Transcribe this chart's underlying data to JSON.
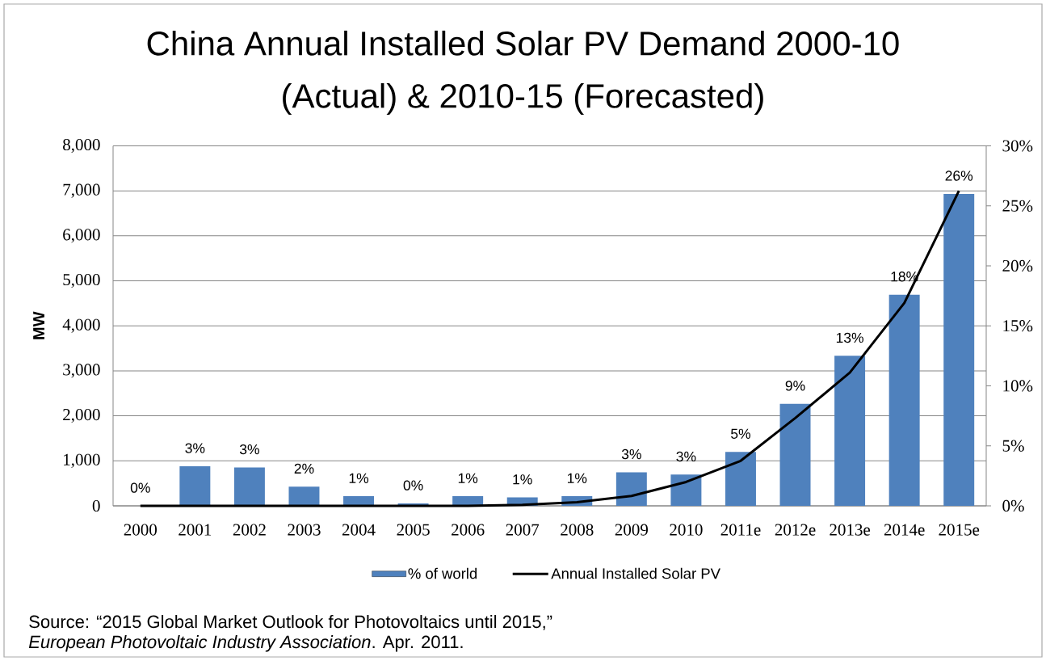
{
  "chart_data": {
    "type": "bar",
    "title": "China Annual Installed Solar PV Demand 2000-10 (Actual) & 2010-15 (Forecasted)",
    "ylabel": "MW",
    "categories": [
      "2000",
      "2001",
      "2002",
      "2003",
      "2004",
      "2005",
      "2006",
      "2007",
      "2008",
      "2009",
      "2010",
      "2011e",
      "2012e",
      "2013e",
      "2014e",
      "2015e"
    ],
    "series": [
      {
        "name": "% of world",
        "axis": "y2",
        "color": "#4f81bd",
        "values": [
          0,
          3.3,
          3.2,
          1.6,
          0.8,
          0.2,
          0.8,
          0.7,
          0.8,
          2.8,
          2.6,
          4.5,
          8.5,
          12.5,
          17.6,
          26.0
        ],
        "value_labels": [
          "0%",
          "3%",
          "3%",
          "2%",
          "1%",
          "0%",
          "1%",
          "1%",
          "1%",
          "3%",
          "3%",
          "5%",
          "9%",
          "13%",
          "18%",
          "26%"
        ]
      },
      {
        "name": "Annual Installed Solar PV",
        "type": "line",
        "color": "#000000",
        "values": [
          0,
          0,
          0,
          0,
          0,
          0,
          0,
          20,
          80,
          220,
          530,
          1000,
          1950,
          2960,
          4510,
          7000
        ]
      }
    ],
    "ylim": [
      0,
      8000
    ],
    "yticks": [
      0,
      {
        "value": 1000,
        "label": "1,000"
      },
      {
        "value": 2000,
        "label": "2,000"
      },
      {
        "value": 3000,
        "label": "3,000"
      },
      {
        "value": 4000,
        "label": "4,000"
      },
      {
        "value": 5000,
        "label": "5,000"
      },
      {
        "value": 6000,
        "label": "6,000"
      },
      {
        "value": 7000,
        "label": "7,000"
      },
      {
        "value": 8000,
        "label": "8,000"
      }
    ],
    "y2lim": [
      0,
      30
    ],
    "y2ticks": [
      {
        "value": 0,
        "label": "0%"
      },
      {
        "value": 5,
        "label": "5%"
      },
      {
        "value": 10,
        "label": "10%"
      },
      {
        "value": 15,
        "label": "15%"
      },
      {
        "value": 20,
        "label": "20%"
      },
      {
        "value": 25,
        "label": "25%"
      },
      {
        "value": 30,
        "label": "30%"
      }
    ],
    "grid": "y",
    "legend": "bottom",
    "annotations": [
      "Source: “2015 Global Market Outlook for Photovoltaics until 2015,”",
      "*European Photovoltaic Industry Association*. Apr. 2011."
    ]
  }
}
